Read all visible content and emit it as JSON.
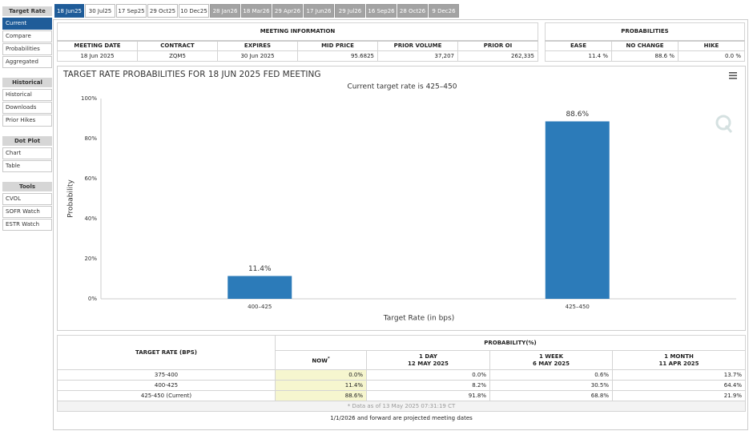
{
  "sidebar": [
    {
      "title": "Target Rate",
      "items": [
        "Current",
        "Compare",
        "Probabilities",
        "Aggregated"
      ]
    },
    {
      "title": "Historical",
      "items": [
        "Historical",
        "Downloads",
        "Prior Hikes"
      ]
    },
    {
      "title": "Dot Plot",
      "items": [
        "Chart",
        "Table"
      ]
    },
    {
      "title": "Tools",
      "items": [
        "CVOL",
        "SOFR Watch",
        "ESTR Watch"
      ]
    }
  ],
  "tabs": [
    "18 Jun25",
    "30 Jul25",
    "17 Sep25",
    "29 Oct25",
    "10 Dec25",
    "28 Jan26",
    "18 Mar26",
    "29 Apr26",
    "17 Jun26",
    "29 Jul26",
    "16 Sep26",
    "28 Oct26",
    "9 Dec26"
  ],
  "meeting_info": {
    "title": "MEETING INFORMATION",
    "headers": [
      "MEETING DATE",
      "CONTRACT",
      "EXPIRES",
      "MID PRICE",
      "PRIOR VOLUME",
      "PRIOR OI"
    ],
    "row": [
      "18 Jun 2025",
      "ZQM5",
      "30 Jun 2025",
      "95.6825",
      "37,207",
      "262,335"
    ]
  },
  "probabilities": {
    "title": "PROBABILITIES",
    "headers": [
      "EASE",
      "NO CHANGE",
      "HIKE"
    ],
    "row": [
      "11.4 %",
      "88.6 %",
      "0.0 %"
    ]
  },
  "chart_data": {
    "type": "bar",
    "title": "TARGET RATE PROBABILITIES FOR 18 JUN 2025 FED MEETING",
    "subtitle": "Current target rate is 425–450",
    "x_label": "Target Rate (in bps)",
    "y_label": "Probability",
    "categories": [
      "400–425",
      "425–450"
    ],
    "values": [
      11.4,
      88.6
    ],
    "value_labels": [
      "11.4%",
      "88.6%"
    ],
    "color": "#2c7bb9",
    "ylim": [
      0,
      100
    ],
    "yticks": [
      {
        "value": 0,
        "label": "0%"
      },
      {
        "value": 20,
        "label": "20%"
      },
      {
        "value": 40,
        "label": "40%"
      },
      {
        "value": 60,
        "label": "60%"
      },
      {
        "value": 80,
        "label": "80%"
      },
      {
        "value": 100,
        "label": "100%"
      }
    ],
    "grid": false
  },
  "rate_table": {
    "title": "TARGET RATE (BPS)",
    "group": "PROBABILITY(%)",
    "now": "NOW",
    "now_note": "*",
    "columns": [
      {
        "label": "1 DAY",
        "date": "12 MAY 2025"
      },
      {
        "label": "1 WEEK",
        "date": "6 MAY 2025"
      },
      {
        "label": "1 MONTH",
        "date": "11 APR 2025"
      }
    ],
    "rows": [
      [
        "375-400",
        "0.0%",
        "0.0%",
        "0.6%",
        "13.7%"
      ],
      [
        "400-425",
        "11.4%",
        "8.2%",
        "30.5%",
        "64.4%"
      ],
      [
        "425-450 (Current)",
        "88.6%",
        "91.8%",
        "68.8%",
        "21.9%"
      ]
    ],
    "note": "* Data as of 13 May 2025 07:31:19 CT",
    "footer": "1/1/2026 and forward are projected meeting dates"
  }
}
